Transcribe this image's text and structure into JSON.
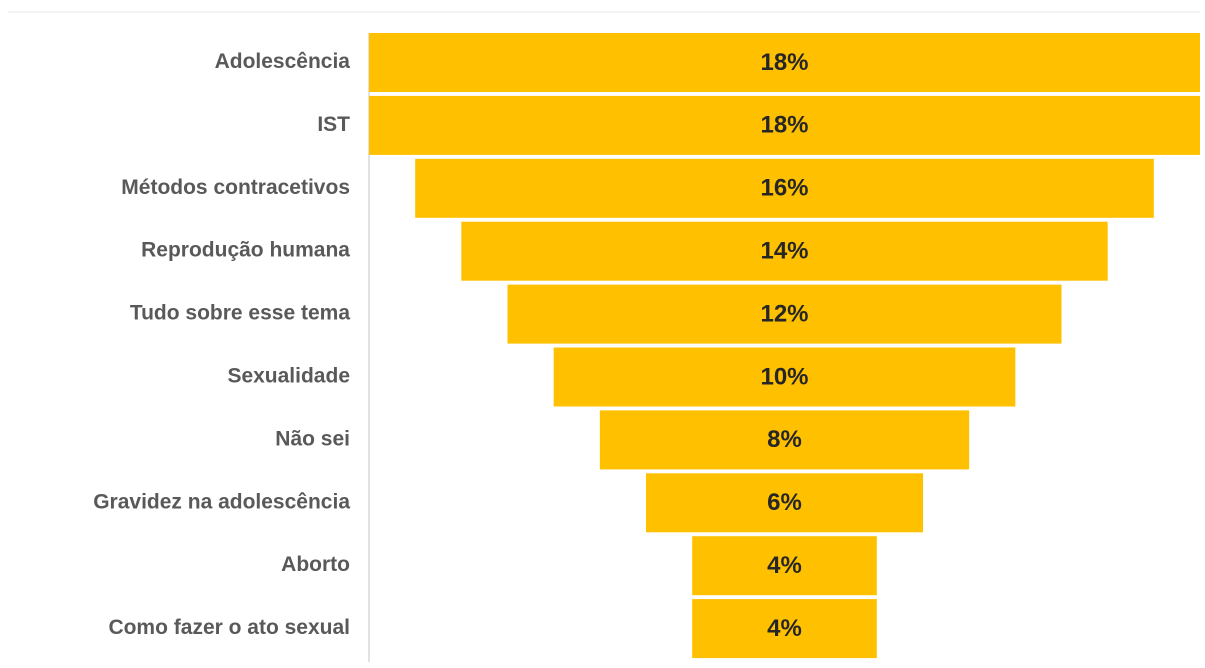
{
  "chart_data": {
    "type": "funnel",
    "categories": [
      "Adolescência",
      "IST",
      "Métodos contracetivos",
      "Reprodução humana",
      "Tudo sobre esse tema",
      "Sexualidade",
      "Não sei",
      "Gravidez na adolescência",
      "Aborto",
      "Como fazer o ato sexual"
    ],
    "values": [
      18,
      18,
      16,
      14,
      12,
      10,
      8,
      6,
      4,
      4
    ],
    "value_labels": [
      "18%",
      "18%",
      "16%",
      "14%",
      "12%",
      "10%",
      "8%",
      "6%",
      "4%",
      "4%"
    ],
    "color": "#FFC000"
  }
}
